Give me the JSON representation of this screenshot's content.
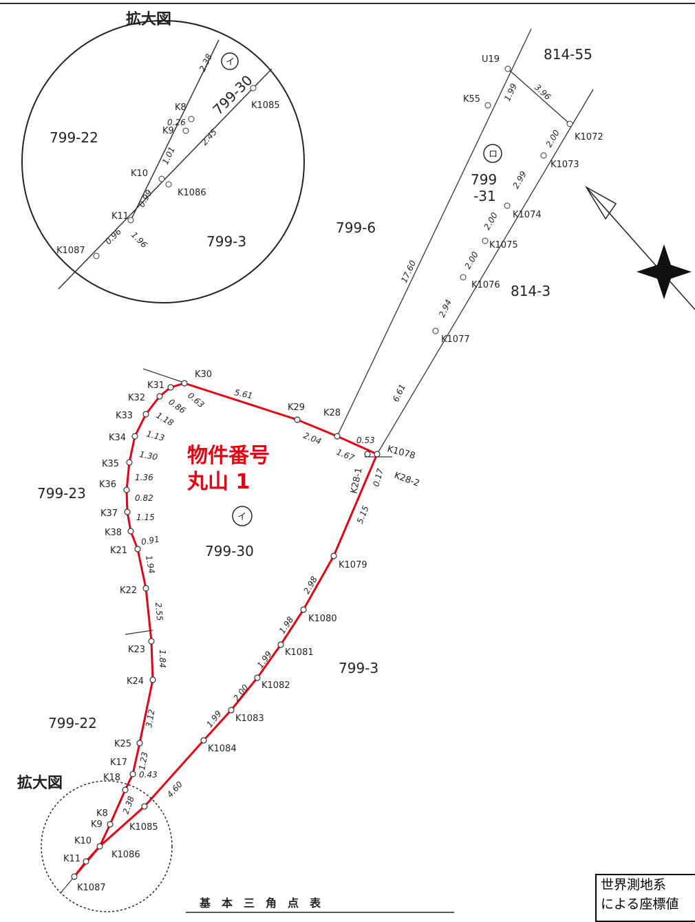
{
  "inset": {
    "title": "拡大図",
    "parcels": [
      "799-22",
      "799-3",
      "799-30"
    ],
    "mark": "イ",
    "points": [
      "K8",
      "K9",
      "K10",
      "K11",
      "K1085",
      "K1086",
      "K1087"
    ],
    "distances": [
      "2.38",
      "0.26",
      "1.01",
      "0.99",
      "0.96",
      "2.45",
      "1.96"
    ]
  },
  "main": {
    "parcels": {
      "p799_6": "799-6",
      "p799_23": "799-23",
      "p799_30": "799-30",
      "p799_22": "799-22",
      "p799_3": "799-3",
      "p814_3": "814-3",
      "p814_55": "814-55",
      "p799_31_a": "799",
      "p799_31_b": "-31"
    },
    "marks": {
      "i": "イ",
      "ro": "ロ"
    },
    "property_label": [
      "物件番号",
      "丸山 1"
    ],
    "zoom_label": "拡大図",
    "table_heading": "基　本　三　角　点　表",
    "legend_lines": [
      "世界測地系",
      "による座標値"
    ],
    "points": [
      "K30",
      "K31",
      "K32",
      "K33",
      "K34",
      "K35",
      "K36",
      "K37",
      "K38",
      "K21",
      "K22",
      "K23",
      "K24",
      "K25",
      "K17",
      "K18",
      "K8",
      "K9",
      "K10",
      "K11",
      "K1087",
      "K1086",
      "K1085",
      "K1084",
      "K1083",
      "K1082",
      "K1081",
      "K1080",
      "K1079",
      "K28-1",
      "K28-2",
      "K1078",
      "K28",
      "K29",
      "U19",
      "K55",
      "K1072",
      "K1073",
      "K1074",
      "K1075",
      "K1076",
      "K1077"
    ],
    "distances": [
      "5.61",
      "0.63",
      "0.86",
      "1.18",
      "1.13",
      "1.30",
      "1.36",
      "0.82",
      "1.15",
      "0.91",
      "1.94",
      "2.55",
      "1.84",
      "3.12",
      "1.23",
      "0.43",
      "2.38",
      "4.60",
      "1.99",
      "2.00",
      "1.99",
      "1.98",
      "2.98",
      "5.15",
      "0.17",
      "1.67",
      "0.53",
      "2.04",
      "17.60",
      "6.61",
      "1.99",
      "3.96",
      "2.00",
      "2.99",
      "2.00",
      "2.00",
      "2.94"
    ]
  },
  "colors": {
    "boundary": "#e60012",
    "line": "#333333",
    "text": "#222222"
  }
}
